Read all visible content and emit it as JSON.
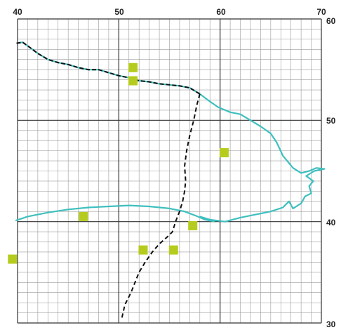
{
  "map": {
    "x_range": [
      40,
      70
    ],
    "y_range": [
      30,
      60
    ],
    "fine_grid_step": 1,
    "major_grid_step": 10,
    "top_ticks": [
      "40",
      "50",
      "60",
      "70"
    ],
    "right_ticks": [
      "60",
      "50",
      "40",
      "30"
    ],
    "colors": {
      "fine_grid": "#9a9a9a",
      "major_grid": "#333333",
      "river": "#3fbfbf",
      "boundary": "#111111",
      "marker": "#b5cc1f"
    },
    "features": {
      "coast_dashed_overlay": [
        [
          39.9,
          57.6
        ],
        [
          40.5,
          57.7
        ],
        [
          41.2,
          57.2
        ],
        [
          42.0,
          56.6
        ],
        [
          43.0,
          56.0
        ],
        [
          44.0,
          55.7
        ],
        [
          45.0,
          55.5
        ],
        [
          46.0,
          55.2
        ],
        [
          47.0,
          55.0
        ],
        [
          48.0,
          55.0
        ],
        [
          49.0,
          54.7
        ],
        [
          50.0,
          54.4
        ],
        [
          51.0,
          54.2
        ],
        [
          52.0,
          53.9
        ],
        [
          53.0,
          53.8
        ],
        [
          54.0,
          53.6
        ],
        [
          55.0,
          53.5
        ],
        [
          56.0,
          53.4
        ],
        [
          57.0,
          53.2
        ],
        [
          58.0,
          52.6
        ]
      ],
      "upper_river": [
        [
          58.0,
          52.6
        ],
        [
          58.8,
          52.0
        ],
        [
          59.8,
          51.3
        ],
        [
          61.0,
          50.8
        ],
        [
          62.0,
          50.6
        ],
        [
          63.0,
          50.0
        ],
        [
          64.0,
          49.4
        ],
        [
          65.0,
          48.7
        ],
        [
          65.6,
          47.8
        ],
        [
          66.2,
          46.5
        ],
        [
          67.2,
          45.3
        ],
        [
          68.0,
          44.8
        ],
        [
          68.8,
          45.0
        ],
        [
          69.5,
          45.3
        ],
        [
          70.3,
          45.2
        ],
        [
          69.3,
          45.0
        ],
        [
          68.5,
          44.5
        ],
        [
          69.2,
          44.0
        ],
        [
          68.8,
          43.5
        ],
        [
          69.0,
          42.8
        ],
        [
          68.4,
          42.5
        ],
        [
          68.0,
          41.8
        ],
        [
          67.2,
          41.3
        ],
        [
          66.8,
          42.0
        ],
        [
          66.2,
          41.4
        ],
        [
          65.0,
          41.0
        ],
        [
          63.5,
          40.7
        ],
        [
          62.0,
          40.4
        ],
        [
          60.5,
          40.0
        ],
        [
          59.0,
          40.2
        ],
        [
          58.0,
          40.5
        ]
      ],
      "lower_river": [
        [
          39.8,
          40.1
        ],
        [
          41.0,
          40.5
        ],
        [
          43.0,
          40.9
        ],
        [
          45.0,
          41.2
        ],
        [
          47.0,
          41.4
        ],
        [
          49.0,
          41.5
        ],
        [
          51.0,
          41.6
        ],
        [
          53.0,
          41.5
        ],
        [
          55.0,
          41.3
        ],
        [
          56.5,
          41.0
        ],
        [
          57.8,
          40.5
        ],
        [
          58.5,
          40.2
        ],
        [
          59.5,
          40.0
        ]
      ],
      "dashed_boundary": [
        [
          58.0,
          52.6
        ],
        [
          57.7,
          51.5
        ],
        [
          57.4,
          50.0
        ],
        [
          57.0,
          48.5
        ],
        [
          56.7,
          47.0
        ],
        [
          56.5,
          45.5
        ],
        [
          56.6,
          44.0
        ],
        [
          56.5,
          43.0
        ],
        [
          56.3,
          42.0
        ],
        [
          56.0,
          41.0
        ],
        [
          55.6,
          40.0
        ],
        [
          55.3,
          39.0
        ],
        [
          54.8,
          38.5
        ],
        [
          54.0,
          37.8
        ],
        [
          53.3,
          37.0
        ],
        [
          52.6,
          36.0
        ],
        [
          52.0,
          35.0
        ],
        [
          51.6,
          34.0
        ],
        [
          51.2,
          33.0
        ],
        [
          50.6,
          31.8
        ],
        [
          50.3,
          30.5
        ]
      ]
    },
    "markers": [
      {
        "name": "marker-1",
        "x": 51.4,
        "y": 55.2
      },
      {
        "name": "marker-2",
        "x": 51.4,
        "y": 53.9
      },
      {
        "name": "marker-3",
        "x": 60.4,
        "y": 46.8
      },
      {
        "name": "marker-4",
        "x": 46.5,
        "y": 40.5
      },
      {
        "name": "marker-5",
        "x": 57.3,
        "y": 39.6
      },
      {
        "name": "marker-6",
        "x": 52.4,
        "y": 37.2
      },
      {
        "name": "marker-7",
        "x": 55.4,
        "y": 37.2
      },
      {
        "name": "marker-8",
        "x": 39.5,
        "y": 36.3
      }
    ]
  }
}
